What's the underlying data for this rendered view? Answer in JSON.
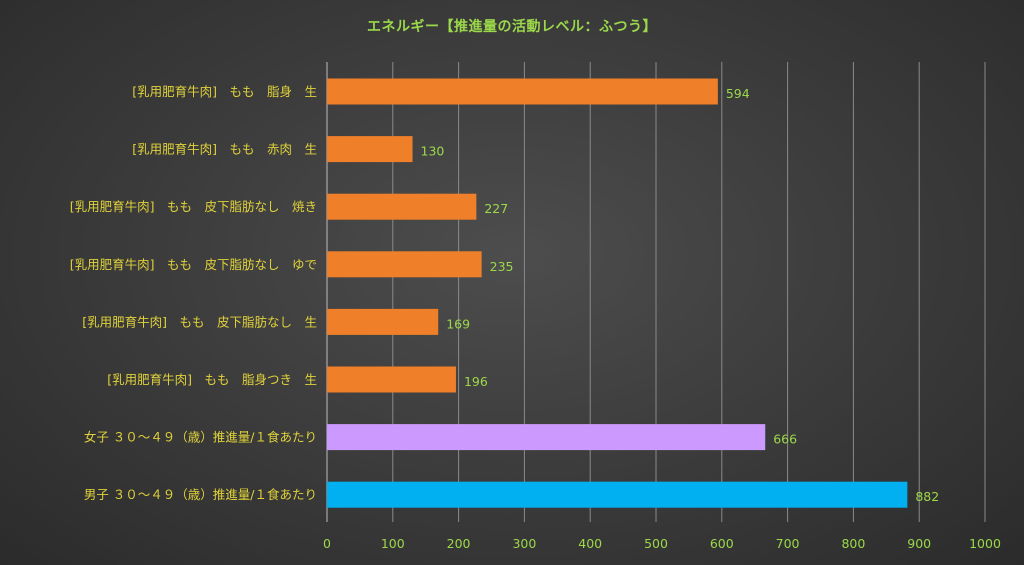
{
  "chart_data": {
    "type": "bar",
    "orientation": "horizontal",
    "title": "エネルギー【推進量の活動レベル：ふつう】",
    "categories": [
      "[乳用肥育牛肉]　もも　脂身　生",
      "[乳用肥育牛肉]　もも　赤肉　生",
      "[乳用肥育牛肉]　もも　皮下脂肪なし　焼き",
      "[乳用肥育牛肉]　もも　皮下脂肪なし　ゆで",
      "[乳用肥育牛肉]　もも　皮下脂肪なし　生",
      "[乳用肥育牛肉]　もも　脂身つき　生",
      "女子 ３０～４９（歳）推進量/１食あたり",
      "男子 ３０～４９（歳）推進量/１食あたり"
    ],
    "values": [
      594,
      130,
      227,
      235,
      169,
      196,
      666,
      882
    ],
    "bar_colors": [
      "#f07f2a",
      "#f07f2a",
      "#f07f2a",
      "#f07f2a",
      "#f07f2a",
      "#f07f2a",
      "#cc99ff",
      "#00b0f0"
    ],
    "xlim": [
      0,
      1000
    ],
    "xticks": [
      0,
      100,
      200,
      300,
      400,
      500,
      600,
      700,
      800,
      900,
      1000
    ],
    "xlabel": "",
    "ylabel": "",
    "grid": true,
    "legend": "none",
    "colors": {
      "title": "#9bd84a",
      "category_label": "#e0d23a",
      "value_label": "#9bd84a",
      "tick_label": "#9bd84a",
      "gridline": "#8a8a8a"
    }
  }
}
